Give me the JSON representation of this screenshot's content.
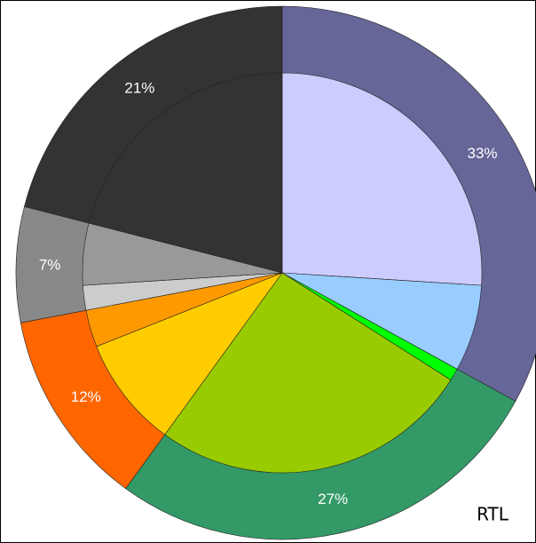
{
  "chart_data": {
    "type": "pie",
    "outer": {
      "values": [
        33,
        27,
        12,
        7,
        21
      ],
      "value_labels": [
        "33%",
        "27%",
        "12%",
        "7%",
        "21%"
      ],
      "colors": [
        "#666699",
        "#339966",
        "#ff6600",
        "#888888",
        "#333333"
      ]
    },
    "inner": {
      "values": [
        26,
        7,
        1,
        26,
        9,
        3,
        2,
        5,
        21
      ],
      "colors": [
        "#ccccff",
        "#99ccff",
        "#00ff00",
        "#99cc00",
        "#ffcc00",
        "#ff9900",
        "#cccccc",
        "#999999",
        "#333333"
      ]
    },
    "annotation": "RTL"
  }
}
